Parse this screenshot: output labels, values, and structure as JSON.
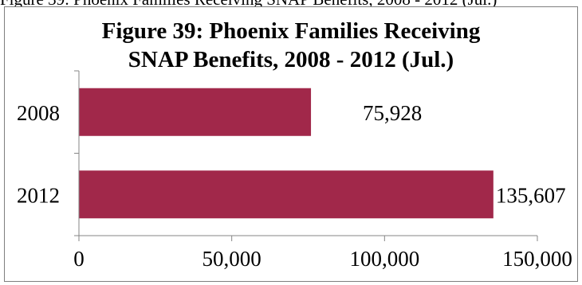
{
  "caption_fragment": "Figure 39: Phoenix Families Receiving SNAP Benefits, 2008 - 2012 (Jul.)",
  "chart_data": {
    "type": "bar",
    "orientation": "horizontal",
    "title_lines": [
      "Figure 39: Phoenix Families Receiving",
      "SNAP Benefits, 2008 - 2012 (Jul.)"
    ],
    "categories": [
      "2008",
      "2012"
    ],
    "values": [
      75928,
      135607
    ],
    "value_labels": [
      "75,928",
      "135,607"
    ],
    "xticks": [
      0,
      50000,
      100000,
      150000
    ],
    "xtick_labels": [
      "0",
      "50,000",
      "100,000",
      "150,000"
    ],
    "xlim": [
      0,
      150000
    ],
    "grid": false,
    "legend": "none",
    "bar_color": "#A1284A",
    "axis_color": "#868686"
  }
}
